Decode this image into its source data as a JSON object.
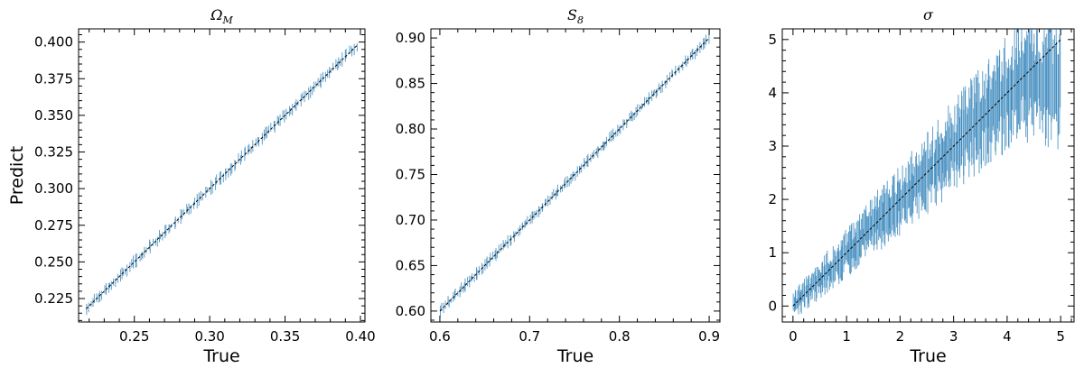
{
  "chart_data": [
    {
      "type": "line",
      "title": "Ω",
      "title_subscript": "M",
      "xlabel": "True",
      "ylabel": "Predict",
      "xlim": [
        0.213,
        0.403
      ],
      "ylim": [
        0.209,
        0.409
      ],
      "xticks": [
        0.25,
        0.3,
        0.35,
        0.4
      ],
      "xtick_labels": [
        "0.25",
        "0.30",
        "0.35",
        "0.40"
      ],
      "yticks": [
        0.225,
        0.25,
        0.275,
        0.3,
        0.325,
        0.35,
        0.375,
        0.4
      ],
      "ytick_labels": [
        "0.225",
        "0.250",
        "0.275",
        "0.300",
        "0.325",
        "0.350",
        "0.375",
        "0.400"
      ],
      "reference_line": {
        "x": [
          0.218,
          0.398
        ],
        "y": [
          0.218,
          0.398
        ]
      },
      "predictions": {
        "x_range": [
          0.218,
          0.398
        ],
        "spread": 0.004,
        "count": 140
      },
      "series_color": "#1f77b4",
      "grid": false
    },
    {
      "type": "line",
      "title": "S",
      "title_subscript": "8",
      "xlabel": "True",
      "ylabel": "",
      "xlim": [
        0.59,
        0.912
      ],
      "ylim": [
        0.588,
        0.91
      ],
      "xticks": [
        0.6,
        0.7,
        0.8,
        0.9
      ],
      "xtick_labels": [
        "0.6",
        "0.7",
        "0.8",
        "0.9"
      ],
      "yticks": [
        0.6,
        0.65,
        0.7,
        0.75,
        0.8,
        0.85,
        0.9
      ],
      "ytick_labels": [
        "0.60",
        "0.65",
        "0.70",
        "0.75",
        "0.80",
        "0.85",
        "0.90"
      ],
      "reference_line": {
        "x": [
          0.6,
          0.9
        ],
        "y": [
          0.6,
          0.9
        ]
      },
      "predictions": {
        "x_range": [
          0.6,
          0.9
        ],
        "spread": 0.006,
        "count": 160
      },
      "series_color": "#1f77b4",
      "grid": false
    },
    {
      "type": "line",
      "title": "σ",
      "title_subscript": "",
      "xlabel": "True",
      "ylabel": "",
      "xlim": [
        -0.2,
        5.25
      ],
      "ylim": [
        -0.3,
        5.2
      ],
      "xticks": [
        0,
        1,
        2,
        3,
        4,
        5
      ],
      "xtick_labels": [
        "0",
        "1",
        "2",
        "3",
        "4",
        "5"
      ],
      "yticks": [
        0,
        1,
        2,
        3,
        4,
        5
      ],
      "ytick_labels": [
        "0",
        "1",
        "2",
        "3",
        "4",
        "5"
      ],
      "reference_line": {
        "x": [
          0,
          5
        ],
        "y": [
          0,
          5
        ]
      },
      "predictions": {
        "x_range": [
          0,
          5
        ],
        "spread": 0.35,
        "plateau": 4.3,
        "count": 320
      },
      "series_color": "#1f77b4",
      "grid": false
    }
  ]
}
